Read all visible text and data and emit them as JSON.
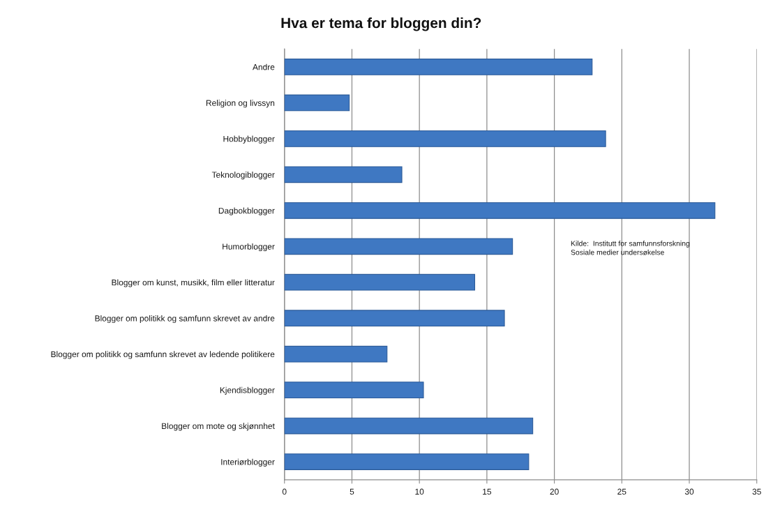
{
  "chart_data": {
    "type": "bar",
    "orientation": "horizontal",
    "title": "Hva er tema for bloggen din?",
    "categories": [
      "Andre",
      "Religion og livssyn",
      "Hobbyblogger",
      "Teknologiblogger",
      "Dagbokblogger",
      "Humorblogger",
      "Blogger om kunst, musikk, film eller litteratur",
      "Blogger om politikk og samfunn skrevet av andre",
      "Blogger om politikk og samfunn skrevet av ledende politikere",
      "Kjendisblogger",
      "Blogger om mote og skjønnhet",
      "Interiørblogger"
    ],
    "values": [
      22.8,
      4.8,
      23.8,
      8.7,
      31.9,
      16.9,
      14.1,
      16.3,
      7.6,
      10.3,
      18.4,
      18.1
    ],
    "color": "#3f78c2",
    "xlim": [
      0,
      35
    ],
    "xticks": [
      0,
      5,
      10,
      15,
      20,
      25,
      30,
      35
    ],
    "grid": "x",
    "annotations": [
      "Kilde:  Institutt for samfunnsforskning\nSosiale medier undersøkelse"
    ]
  }
}
